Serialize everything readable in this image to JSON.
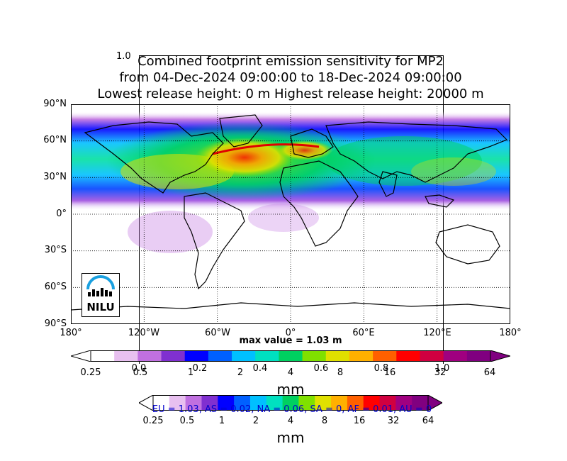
{
  "title": {
    "line1": "Combined footprint emission sensitivity for MP2",
    "line2": "from 04-Dec-2024 09:00:00 to 18-Dec-2024 09:00:00",
    "line3": "Lowest release height: 0 m       Highest release height: 20000 m"
  },
  "ghost_axis": {
    "top_label": "1.0",
    "ticks": [
      "0.0",
      "0.2",
      "0.4",
      "0.6",
      "0.8",
      "1.0"
    ]
  },
  "map": {
    "lat_labels": [
      "90°N",
      "60°N",
      "30°N",
      "0°",
      "30°S",
      "60°S",
      "90°S"
    ],
    "lon_labels": [
      "180°",
      "120°W",
      "60°W",
      "0°",
      "60°E",
      "120°E",
      "180°"
    ],
    "max_value_text": "max value = 1.03 m",
    "logo_text": "NILU"
  },
  "colorbar_main": {
    "ticks": [
      "0.25",
      "0.5",
      "1",
      "2",
      "4",
      "8",
      "16",
      "32",
      "64"
    ],
    "unit": "mm",
    "colors": [
      "#ffffff",
      "#e8c0f0",
      "#c070e0",
      "#8030d0",
      "#0000ff",
      "#0060ff",
      "#00c0ff",
      "#00e0c0",
      "#00d060",
      "#80e000",
      "#e0e000",
      "#ffb000",
      "#ff6000",
      "#ff0000",
      "#d00040",
      "#a00080",
      "#800080"
    ]
  },
  "colorbar_secondary": {
    "ticks": [
      "0.25",
      "0.5",
      "1",
      "2",
      "4",
      "8",
      "16",
      "32",
      "64"
    ],
    "unit": "mm",
    "region_text": "EU = 1.03,  AS = 0.02,  NA = 0.06,  SA = 0,  AF = 0.01,  AU = 0"
  }
}
